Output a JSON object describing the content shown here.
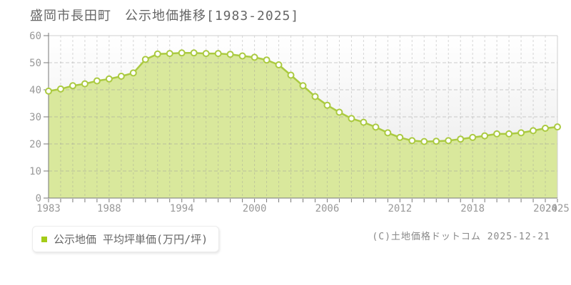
{
  "header": {
    "title": "盛岡市長田町　公示地価推移[1983-2025]"
  },
  "legend": {
    "label": "公示地価 平均坪単価(万円/坪)",
    "marker_color": "#a4cc18"
  },
  "footer": {
    "copyright": "(C)土地価格ドットコム 2025-12-21"
  },
  "chart_data": {
    "type": "area",
    "title": "盛岡市長田町 公示地価推移[1983-2025]",
    "x": [
      1983,
      1984,
      1985,
      1986,
      1987,
      1988,
      1989,
      1990,
      1991,
      1992,
      1993,
      1994,
      1995,
      1996,
      1997,
      1998,
      1999,
      2000,
      2001,
      2002,
      2003,
      2004,
      2005,
      2006,
      2007,
      2008,
      2009,
      2010,
      2011,
      2012,
      2013,
      2014,
      2015,
      2016,
      2017,
      2018,
      2019,
      2020,
      2021,
      2022,
      2023,
      2024,
      2025
    ],
    "series": [
      {
        "name": "公示地価 平均坪単価(万円/坪)",
        "values": [
          39.5,
          40.3,
          41.5,
          42.2,
          43.3,
          44.0,
          45.0,
          46.2,
          51.2,
          53.2,
          53.4,
          53.6,
          53.6,
          53.4,
          53.4,
          53.1,
          52.5,
          52.0,
          51.0,
          49.2,
          45.4,
          41.5,
          37.5,
          34.3,
          31.7,
          29.4,
          28.0,
          26.2,
          24.1,
          22.4,
          21.2,
          20.9,
          21.0,
          21.2,
          21.8,
          22.4,
          23.0,
          23.7,
          23.7,
          24.1,
          24.9,
          25.8,
          26.3
        ]
      }
    ],
    "xlabel": "",
    "ylabel": "",
    "ylim": [
      0,
      60
    ],
    "yticks": [
      0,
      10,
      20,
      30,
      40,
      50,
      60
    ],
    "xtick_labels": [
      "1983",
      "1988",
      "1994",
      "2000",
      "2006",
      "2012",
      "2018",
      "2024",
      "2025"
    ],
    "grid": "dashed",
    "legend_position": "bottom-left",
    "colors": {
      "area_fill": "#d9e89c",
      "line": "#abca41",
      "marker_fill": "#ffffff",
      "marker_stroke": "#abca41",
      "grid": "#999999",
      "axis": "#777777",
      "border": "#cfcfcf",
      "tick_label": "#999999",
      "plot_bg_top": "#ffffff",
      "plot_bg_bottom": "#e9e9e9"
    }
  }
}
